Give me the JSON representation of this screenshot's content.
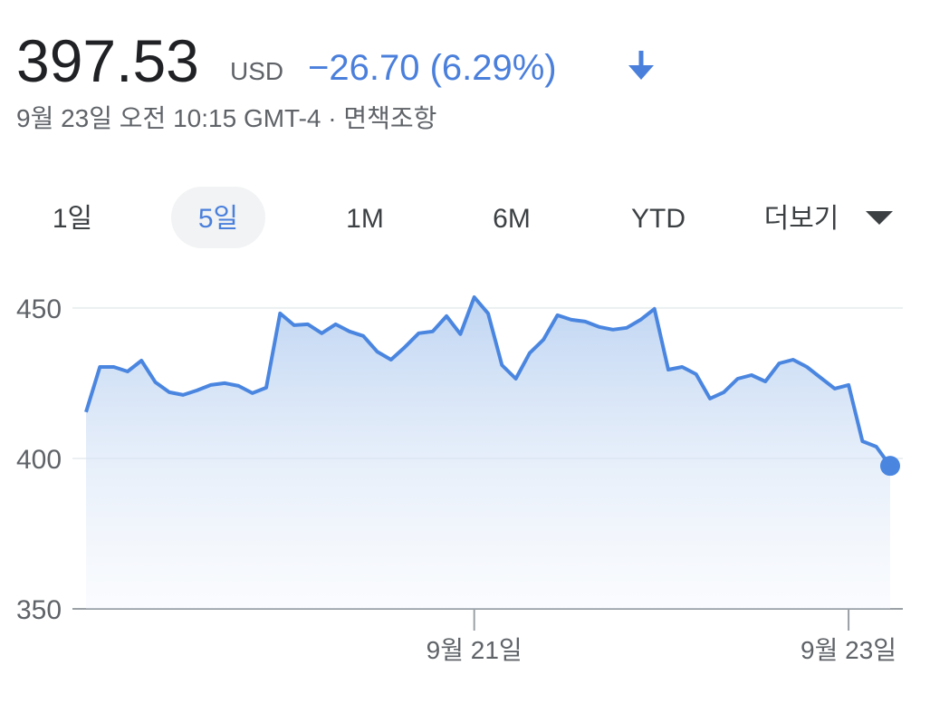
{
  "header": {
    "price": "397.53",
    "currency": "USD",
    "change": "−26.70 (6.29%)",
    "subtitle": "9월 23일 오전 10:15 GMT-4 · 면책조항"
  },
  "tabs": {
    "items": [
      "1일",
      "5일",
      "1M",
      "6M",
      "YTD",
      "더보기"
    ],
    "selected": 1
  },
  "chart_data": {
    "type": "line",
    "color": "#4a86e0",
    "categories": [
      null,
      null,
      null,
      null,
      null,
      null,
      null,
      null,
      null,
      null,
      null,
      null,
      null,
      null,
      null,
      null,
      null,
      null,
      null,
      null,
      null,
      null,
      null,
      null,
      null,
      null,
      null,
      null,
      "9월 21일",
      null,
      null,
      null,
      null,
      null,
      null,
      null,
      null,
      null,
      null,
      null,
      null,
      null,
      null,
      null,
      null,
      null,
      null,
      null,
      null,
      null,
      null,
      null,
      null,
      null,
      null,
      "9월 23일",
      null,
      null,
      null
    ],
    "values": [
      415.4,
      430.4,
      430.4,
      428.9,
      432.5,
      425.3,
      422,
      421.1,
      422.6,
      424.4,
      425,
      424.1,
      421.7,
      423.5,
      448.2,
      444.3,
      444.6,
      441.6,
      444.6,
      442.2,
      440.7,
      435.5,
      432.8,
      437,
      441.6,
      442.2,
      447.3,
      441.3,
      453.6,
      448.2,
      431,
      426.5,
      435,
      439.5,
      447.6,
      446.1,
      445.5,
      443.7,
      442.8,
      443.4,
      446.1,
      449.7,
      429.5,
      430.4,
      428,
      419.9,
      422,
      426.5,
      427.7,
      425.6,
      431.6,
      432.8,
      430.4,
      426.8,
      423.2,
      424.4,
      405.7,
      403.9,
      397.53
    ],
    "ylim": [
      350,
      456
    ],
    "yticks": [
      350,
      400,
      450
    ],
    "grid": true
  }
}
